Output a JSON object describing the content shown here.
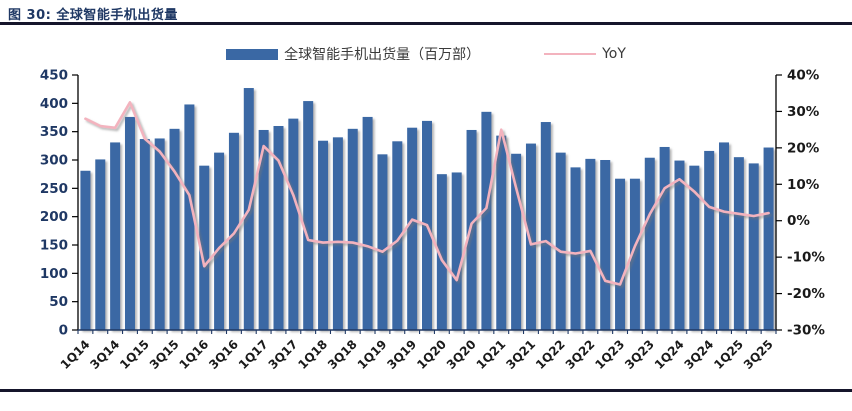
{
  "figure": {
    "title": "图 30: 全球智能手机出货量"
  },
  "legend": {
    "bar_label": "全球智能手机出货量（百万部）",
    "line_label": "YoY"
  },
  "colors": {
    "bar": "#3A68A4",
    "line": "#F3B3BE",
    "title": "#1F3864",
    "left_axis_labels": "#1F3864",
    "right_axis_labels": "#1a1a1a",
    "x_axis_labels": "#1a1a1a",
    "axis_line": "#000000",
    "baseline": "#1F3864",
    "rule": "#15152b"
  },
  "chart_data": {
    "type": "bar",
    "subtype": "combo-bar-line-dual-axis",
    "title": "图 30: 全球智能手机出货量",
    "xlabel": "",
    "ylabel_left": "全球智能手机出货量（百万部）",
    "ylabel_right": "YoY",
    "grid": false,
    "legend_position": "top-center",
    "categories": [
      "1Q14",
      "2Q14",
      "3Q14",
      "4Q14",
      "1Q15",
      "2Q15",
      "3Q15",
      "4Q15",
      "1Q16",
      "2Q16",
      "3Q16",
      "4Q16",
      "1Q17",
      "2Q17",
      "3Q17",
      "4Q17",
      "1Q18",
      "2Q18",
      "3Q18",
      "4Q18",
      "1Q19",
      "2Q19",
      "3Q19",
      "4Q19",
      "1Q20",
      "2Q20",
      "3Q20",
      "4Q20",
      "1Q21",
      "2Q21",
      "3Q21",
      "4Q21",
      "1Q22",
      "2Q22",
      "3Q22",
      "4Q22",
      "1Q23",
      "2Q23",
      "3Q23",
      "4Q23",
      "1Q24",
      "2Q24",
      "3Q24",
      "4Q24",
      "1Q25",
      "2Q25",
      "3Q25"
    ],
    "x_tick_labels": [
      "1Q14",
      "3Q14",
      "1Q15",
      "3Q15",
      "1Q16",
      "3Q16",
      "1Q17",
      "3Q17",
      "1Q18",
      "3Q18",
      "1Q19",
      "3Q19",
      "1Q20",
      "3Q20",
      "1Q21",
      "3Q21",
      "1Q22",
      "3Q22",
      "1Q23",
      "3Q23",
      "1Q24",
      "3Q24",
      "1Q25",
      "3Q25"
    ],
    "series": [
      {
        "name": "全球智能手机出货量（百万部）",
        "type": "bar",
        "axis": "left",
        "values": [
          281,
          301,
          331,
          376,
          337,
          338,
          355,
          398,
          290,
          313,
          348,
          427,
          353,
          360,
          373,
          404,
          334,
          340,
          355,
          376,
          310,
          333,
          357,
          369,
          275,
          278,
          353,
          385,
          343,
          311,
          329,
          367,
          313,
          287,
          302,
          300,
          267,
          267,
          304,
          323,
          299,
          290,
          316,
          331,
          305,
          294,
          322
        ]
      },
      {
        "name": "YoY",
        "type": "line",
        "axis": "right",
        "values": [
          28,
          26,
          25.5,
          32.5,
          22.5,
          19,
          13.5,
          7,
          -12.5,
          -7.5,
          -3.5,
          3,
          20.5,
          16.5,
          7,
          -5.3,
          -6,
          -5.8,
          -6,
          -7,
          -8.5,
          -5.5,
          0.3,
          -1.2,
          -10.8,
          -16.3,
          -0.8,
          3.5,
          25,
          9,
          -6.5,
          -5.6,
          -8.5,
          -9,
          -8.3,
          -16.5,
          -17.5,
          -7,
          1.8,
          8.9,
          11.4,
          8,
          3.8,
          2.5,
          1.9,
          1.3,
          2.1
        ]
      }
    ],
    "left_axis": {
      "min": 0,
      "max": 450,
      "step": 50,
      "tick_labels": [
        "450",
        "400",
        "350",
        "300",
        "250",
        "200",
        "150",
        "100",
        "50",
        "0"
      ]
    },
    "right_axis": {
      "min": -30,
      "max": 40,
      "step": 10,
      "format": "percent",
      "tick_labels": [
        "40%",
        "30%",
        "20%",
        "10%",
        "0%",
        "-10%",
        "-20%",
        "-30%"
      ]
    }
  }
}
